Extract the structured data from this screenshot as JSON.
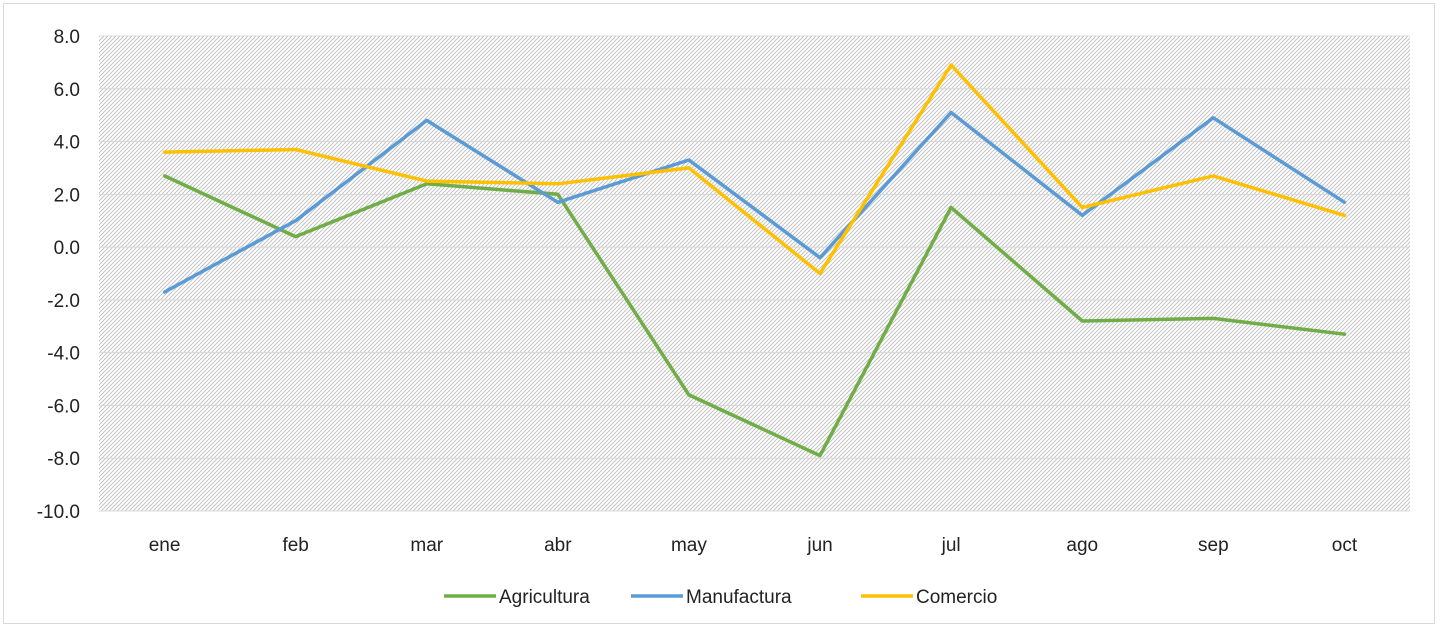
{
  "chart_data": {
    "type": "line",
    "title": "",
    "xlabel": "",
    "ylabel": "",
    "categories": [
      "ene",
      "feb",
      "mar",
      "abr",
      "may",
      "jun",
      "jul",
      "ago",
      "sep",
      "oct"
    ],
    "ylim": [
      -10,
      8
    ],
    "yticks": [
      "8.0",
      "6.0",
      "4.0",
      "2.0",
      "0.0",
      "-2.0",
      "-4.0",
      "-6.0",
      "-8.0",
      "-10.0"
    ],
    "ytick_values": [
      8,
      6,
      4,
      2,
      0,
      -2,
      -4,
      -6,
      -8,
      -10
    ],
    "grid": true,
    "legend_position": "bottom",
    "series": [
      {
        "name": "Agricultura",
        "color": "#70ad47",
        "values": [
          2.7,
          0.4,
          2.4,
          2.0,
          -5.6,
          -7.9,
          1.5,
          -2.8,
          -2.7,
          -3.3
        ]
      },
      {
        "name": "Manufactura",
        "color": "#5b9bd5",
        "values": [
          -1.7,
          1.0,
          4.8,
          1.7,
          3.3,
          -0.4,
          5.1,
          1.2,
          4.9,
          1.7
        ]
      },
      {
        "name": "Comercio",
        "color": "#ffc000",
        "values": [
          3.6,
          3.7,
          2.5,
          2.4,
          3.0,
          -1.0,
          6.9,
          1.5,
          2.7,
          1.2
        ]
      }
    ]
  }
}
